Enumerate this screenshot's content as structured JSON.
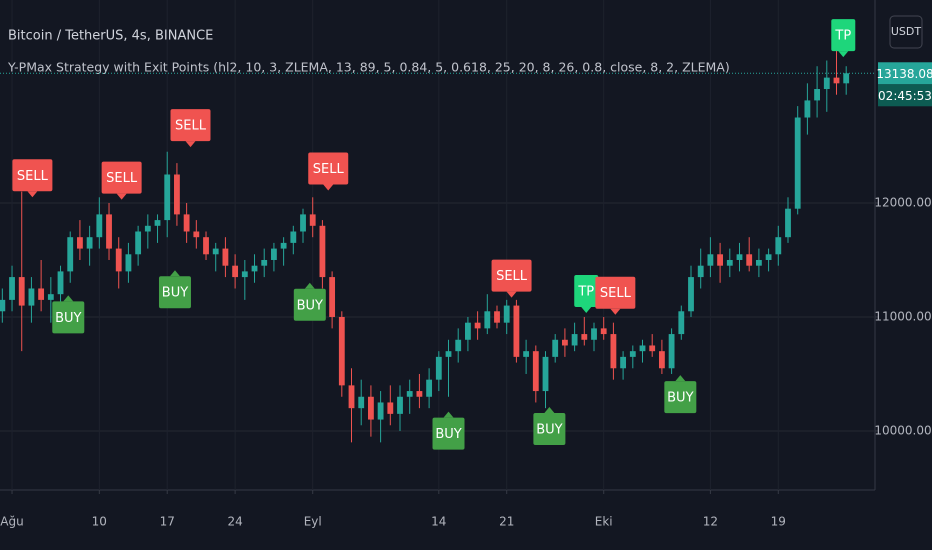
{
  "chart_data": {
    "type": "candlestick",
    "title": "Bitcoin / TetherUS, 4s, BINANCE",
    "subtitle": "Y-PMax Strategy with Exit Points (hl2, 10, 3, ZLEMA, 13, 89, 5, 0.84, 5, 0.618, 25, 20, 8, 26, 0.8, close, 8, 2, ZLEMA)",
    "currency": "USDT",
    "x": [
      -1,
      0,
      1,
      2,
      3,
      4,
      5,
      6,
      7,
      8,
      9,
      10,
      11,
      12,
      13,
      14,
      15,
      16,
      17,
      18,
      19,
      20,
      21,
      22,
      23,
      24,
      25,
      26,
      27,
      28,
      29,
      30,
      31,
      32,
      33,
      34,
      35,
      36,
      37,
      38,
      39,
      40,
      41,
      42,
      43,
      44,
      45,
      46,
      47,
      48,
      49,
      50,
      51,
      52,
      53,
      54,
      55,
      56,
      57,
      58,
      59,
      60,
      61,
      62,
      63,
      64,
      65,
      66,
      67,
      68,
      69,
      70,
      71,
      72,
      73,
      74,
      75,
      76,
      77,
      78,
      79,
      80,
      81,
      82,
      83,
      84,
      85,
      86
    ],
    "open": [
      11050,
      11150,
      11350,
      11100,
      11250,
      11150,
      11200,
      11400,
      11700,
      11600,
      11700,
      11900,
      11600,
      11400,
      11550,
      11750,
      11800,
      11850,
      12250,
      11900,
      11750,
      11700,
      11550,
      11600,
      11450,
      11350,
      11400,
      11450,
      11500,
      11600,
      11650,
      11750,
      11900,
      11800,
      11350,
      11000,
      10400,
      10200,
      10300,
      10100,
      10250,
      10150,
      10300,
      10350,
      10300,
      10450,
      10650,
      10700,
      10800,
      10950,
      10900,
      11050,
      10950,
      11100,
      10650,
      10700,
      10350,
      10650,
      10800,
      10750,
      10850,
      10800,
      10900,
      10850,
      10550,
      10650,
      10700,
      10750,
      10700,
      10550,
      10850,
      11050,
      11350,
      11450,
      11550,
      11450,
      11500,
      11550,
      11450,
      11500,
      11550,
      11700,
      11950,
      12750,
      12900,
      13000,
      13100,
      13050
    ],
    "high": [
      11250,
      11450,
      12100,
      11350,
      11500,
      11350,
      11450,
      11750,
      11850,
      11800,
      12050,
      12000,
      11700,
      11650,
      11800,
      11900,
      11900,
      12450,
      12350,
      12000,
      11850,
      11750,
      11650,
      11700,
      11550,
      11500,
      11550,
      11600,
      11650,
      11700,
      11800,
      11950,
      12050,
      11850,
      11400,
      11050,
      10550,
      10450,
      10400,
      10350,
      10400,
      10400,
      10450,
      10500,
      10550,
      10700,
      10800,
      10900,
      11000,
      11050,
      11200,
      11100,
      11150,
      11150,
      10800,
      10750,
      10700,
      10850,
      10900,
      10950,
      11000,
      10950,
      11000,
      10950,
      10700,
      10750,
      10800,
      10850,
      10800,
      10900,
      11100,
      11450,
      11600,
      11700,
      11650,
      11600,
      11650,
      11700,
      11600,
      11600,
      11800,
      12050,
      12850,
      13050,
      13200,
      13250,
      13350,
      13200
    ],
    "low": [
      10950,
      11050,
      10700,
      10950,
      11050,
      10950,
      11000,
      11300,
      11500,
      11450,
      11600,
      11500,
      11250,
      11300,
      11450,
      11600,
      11650,
      11700,
      11800,
      11650,
      11600,
      11500,
      11400,
      11350,
      11250,
      11150,
      11300,
      11350,
      11400,
      11450,
      11550,
      11650,
      11700,
      11250,
      10900,
      10300,
      9900,
      10050,
      9950,
      9900,
      10050,
      10000,
      10150,
      10200,
      10200,
      10350,
      10300,
      10600,
      10700,
      10800,
      10850,
      10900,
      10850,
      10600,
      10500,
      10250,
      10200,
      10600,
      10650,
      10700,
      10750,
      10700,
      10800,
      10450,
      10450,
      10550,
      10600,
      10650,
      10500,
      10500,
      10800,
      11000,
      11250,
      11350,
      11300,
      11350,
      11400,
      11400,
      11350,
      11400,
      11450,
      11650,
      11900,
      12600,
      12750,
      12800,
      12950,
      12950
    ],
    "close": [
      11150,
      11350,
      11100,
      11250,
      11150,
      11200,
      11400,
      11700,
      11600,
      11700,
      11900,
      11600,
      11400,
      11550,
      11750,
      11800,
      11850,
      12250,
      11900,
      11750,
      11700,
      11550,
      11600,
      11450,
      11350,
      11400,
      11450,
      11500,
      11600,
      11650,
      11750,
      11900,
      11800,
      11350,
      11000,
      10400,
      10200,
      10300,
      10100,
      10250,
      10150,
      10300,
      10350,
      10300,
      10450,
      10650,
      10700,
      10800,
      10950,
      10900,
      11050,
      10950,
      11100,
      10650,
      10700,
      10350,
      10650,
      10800,
      10750,
      10850,
      10800,
      10900,
      10850,
      10550,
      10650,
      10700,
      10750,
      10700,
      10550,
      10850,
      11050,
      11350,
      11450,
      11550,
      11450,
      11500,
      11550,
      11450,
      11500,
      11550,
      11700,
      11950,
      12750,
      12900,
      13000,
      13100,
      13050,
      13138.08
    ],
    "up_color": "#26a69a",
    "down_color": "#ef5350",
    "xlim": [
      -1.24,
      88.97
    ],
    "xticks": [
      {
        "value": 0,
        "label": "Ağu"
      },
      {
        "value": 9,
        "label": "10"
      },
      {
        "value": 16,
        "label": "17"
      },
      {
        "value": 23,
        "label": "24"
      },
      {
        "value": 31,
        "label": "Eyl"
      },
      {
        "value": 44,
        "label": "14"
      },
      {
        "value": 51,
        "label": "21"
      },
      {
        "value": 61,
        "label": "Eki"
      },
      {
        "value": 72,
        "label": "12"
      },
      {
        "value": 79,
        "label": "19"
      }
    ],
    "ylim": [
      9482,
      13781
    ],
    "yticks": [
      {
        "value": 10000,
        "label": "10000.00"
      },
      {
        "value": 11000,
        "label": "11000.00"
      },
      {
        "value": 12000,
        "label": "12000.00"
      }
    ],
    "grid": true,
    "last_price": 13138.08,
    "countdown": "02:45:53",
    "annotations": [
      {
        "text": "SELL",
        "x": 2.1,
        "y": 12050
      },
      {
        "text": "BUY",
        "x": 5.8,
        "y": 11190
      },
      {
        "text": "SELL",
        "x": 11.3,
        "y": 12030
      },
      {
        "text": "BUY",
        "x": 16.8,
        "y": 11410
      },
      {
        "text": "SELL",
        "x": 18.4,
        "y": 12490
      },
      {
        "text": "BUY",
        "x": 30.7,
        "y": 11300
      },
      {
        "text": "SELL",
        "x": 32.6,
        "y": 12110
      },
      {
        "text": "BUY",
        "x": 45,
        "y": 10170
      },
      {
        "text": "SELL",
        "x": 51.5,
        "y": 11170
      },
      {
        "text": "BUY",
        "x": 55.4,
        "y": 10210
      },
      {
        "text": "TP",
        "x": 59.2,
        "y": 11035
      },
      {
        "text": "SELL",
        "x": 62.2,
        "y": 11020
      },
      {
        "text": "BUY",
        "x": 68.9,
        "y": 10490
      },
      {
        "text": "TP",
        "x": 85.7,
        "y": 13280
      }
    ],
    "annotation_colors": {
      "SELL": "#f05350",
      "BUY": "#43a047",
      "TP": "#1ed67b"
    }
  }
}
